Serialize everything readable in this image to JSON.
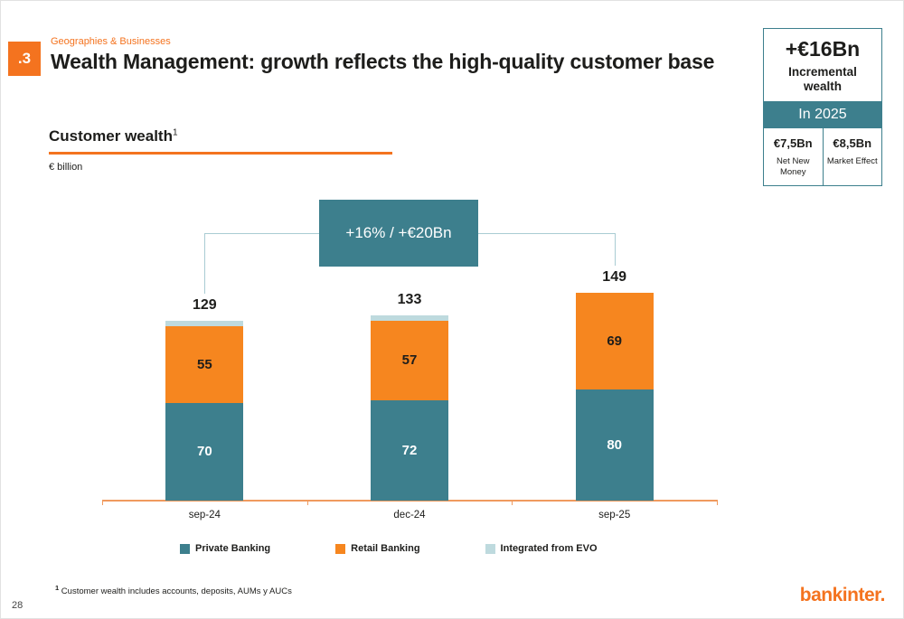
{
  "slide": {
    "section_number": ".3",
    "kicker": "Geographies & Businesses",
    "title": "Wealth Management: growth reflects the high-quality customer base",
    "page_number": "28",
    "logo_text": "bankinter."
  },
  "highlight_box": {
    "headline": "+€16Bn",
    "subline": "Incremental wealth",
    "period": "In 2025",
    "cells": [
      {
        "value": "€7,5Bn",
        "label": "Net New Money"
      },
      {
        "value": "€8,5Bn",
        "label": "Market Effect"
      }
    ]
  },
  "chart": {
    "heading": "Customer wealth",
    "heading_superscript": "1",
    "unit": "€ billion",
    "callout": "+16% / +€20Bn",
    "footnote_marker": "1",
    "footnote_text": " Customer wealth includes accounts, deposits, AUMs y AUCs"
  },
  "colors": {
    "accent_orange": "#f4731f",
    "teal": "#3d7f8d",
    "evo_light_blue": "#bedade",
    "bracket_line": "#a9ccd3"
  },
  "chart_data": {
    "type": "bar",
    "stacked": true,
    "title": "Customer wealth",
    "ylabel": "€ billion",
    "categories": [
      "sep-24",
      "dec-24",
      "sep-25"
    ],
    "series": [
      {
        "name": "Private Banking",
        "color": "#3d7f8d",
        "label_color": "#ffffff",
        "show_labels": true,
        "values": [
          70,
          72,
          80
        ]
      },
      {
        "name": "Retail Banking",
        "color": "#f6861f",
        "label_color": "#1d1d1b",
        "show_labels": true,
        "values": [
          55,
          57,
          69
        ]
      },
      {
        "name": "Integrated from EVO",
        "color": "#bedade",
        "label_color": "#1d1d1b",
        "show_labels": false,
        "values": [
          4,
          4,
          0
        ]
      }
    ],
    "totals": [
      129,
      133,
      149
    ],
    "callout": "+16% / +€20Bn",
    "callout_span": [
      "sep-24",
      "sep-25"
    ],
    "ylim": [
      0,
      160
    ],
    "grid": false,
    "legend_position": "bottom"
  }
}
